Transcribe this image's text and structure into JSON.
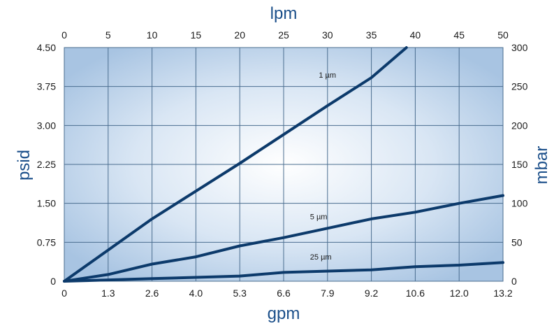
{
  "chart_data": {
    "type": "line",
    "title": "",
    "x_bottom": {
      "label": "gpm",
      "ticks": [
        "0",
        "1.3",
        "2.6",
        "4.0",
        "5.3",
        "6.6",
        "7.9",
        "9.2",
        "10.6",
        "12.0",
        "13.2"
      ],
      "range": [
        0,
        50
      ],
      "unit_note": "same scale as lpm"
    },
    "x_top": {
      "label": "lpm",
      "ticks": [
        "0",
        "5",
        "10",
        "15",
        "20",
        "25",
        "30",
        "35",
        "40",
        "45",
        "50"
      ],
      "range": [
        0,
        50
      ]
    },
    "y_left": {
      "label": "psid",
      "ticks": [
        "0",
        "0.75",
        "1.50",
        "2.25",
        "3.00",
        "3.75",
        "4.50"
      ],
      "range": [
        0,
        4.5
      ]
    },
    "y_right": {
      "label": "mbar",
      "ticks": [
        "0",
        "50",
        "100",
        "150",
        "200",
        "250",
        "300"
      ],
      "range": [
        0,
        300
      ]
    },
    "grid": true,
    "series": [
      {
        "name": "1 µm",
        "x_units": "lpm",
        "y_units": "psid",
        "points": [
          [
            0,
            0
          ],
          [
            10,
            1.2
          ],
          [
            20,
            2.27
          ],
          [
            30,
            3.38
          ],
          [
            35,
            3.92
          ],
          [
            39,
            4.5
          ]
        ]
      },
      {
        "name": "5 µm",
        "x_units": "lpm",
        "y_units": "psid",
        "points": [
          [
            0,
            0
          ],
          [
            5,
            0.13
          ],
          [
            10,
            0.33
          ],
          [
            15,
            0.47
          ],
          [
            20,
            0.68
          ],
          [
            25,
            0.84
          ],
          [
            30,
            1.02
          ],
          [
            35,
            1.2
          ],
          [
            40,
            1.33
          ],
          [
            45,
            1.5
          ],
          [
            50,
            1.65
          ]
        ]
      },
      {
        "name": "25 µm",
        "x_units": "lpm",
        "y_units": "psid",
        "points": [
          [
            0,
            0
          ],
          [
            10,
            0.05
          ],
          [
            20,
            0.1
          ],
          [
            25,
            0.17
          ],
          [
            35,
            0.22
          ],
          [
            40,
            0.28
          ],
          [
            45,
            0.31
          ],
          [
            50,
            0.36
          ]
        ]
      }
    ],
    "colors": {
      "line": "#0c3a6b",
      "grid": "#4a6d8f",
      "axis_title": "#1b4f8a",
      "bg_edge": "#a8c4e2",
      "bg_center": "#ffffff"
    }
  }
}
